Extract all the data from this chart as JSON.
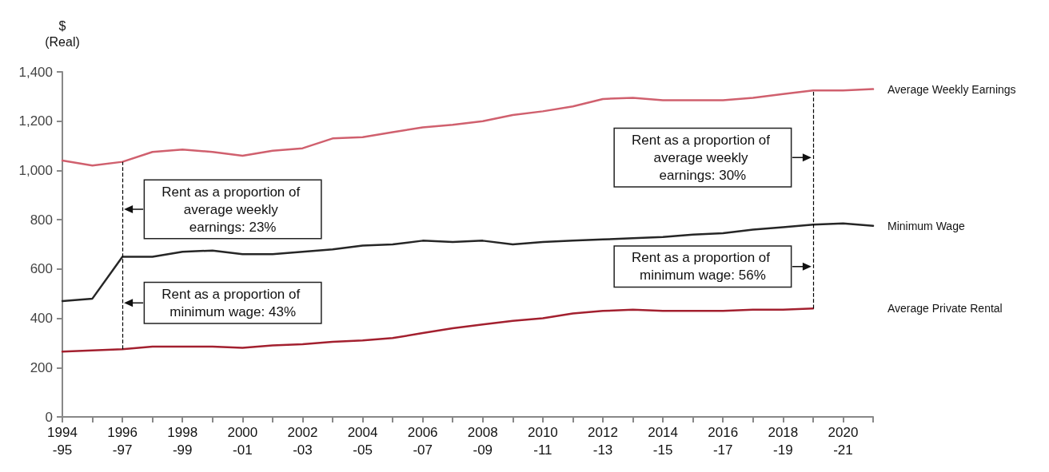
{
  "chart_data": {
    "type": "line",
    "ylabel": "$\n(Real)",
    "categories": [
      "1994-95",
      null,
      "1996-97",
      null,
      "1998-99",
      null,
      "2000-01",
      null,
      "2002-03",
      null,
      "2004-05",
      null,
      "2006-07",
      null,
      "2008-09",
      null,
      "2010-11",
      null,
      "2012-13",
      null,
      "2014-15",
      null,
      "2016-17",
      null,
      "2018-19",
      null,
      "2020-21",
      null
    ],
    "series": [
      {
        "name": "Average Weekly Earnings",
        "color": "#d0606e",
        "values": [
          1040,
          1020,
          1035,
          1075,
          1085,
          1075,
          1060,
          1080,
          1090,
          1130,
          1135,
          1155,
          1175,
          1185,
          1200,
          1225,
          1240,
          1260,
          1290,
          1295,
          1285,
          1285,
          1285,
          1295,
          1310,
          1325,
          1325,
          1330
        ]
      },
      {
        "name": "Minimum Wage",
        "color": "#262626",
        "values": [
          470,
          480,
          650,
          650,
          670,
          675,
          660,
          660,
          670,
          680,
          695,
          700,
          715,
          710,
          715,
          700,
          710,
          715,
          720,
          725,
          730,
          740,
          745,
          760,
          770,
          780,
          785,
          775
        ]
      },
      {
        "name": "Average Private Rental",
        "color": "#a3202f",
        "values": [
          265,
          270,
          275,
          285,
          285,
          285,
          280,
          290,
          295,
          305,
          310,
          320,
          340,
          360,
          375,
          390,
          400,
          420,
          430,
          435,
          430,
          430,
          430,
          435,
          435,
          440,
          null,
          null
        ]
      }
    ],
    "ylim": [
      0,
      1400
    ],
    "yticks": [
      0,
      200,
      400,
      600,
      800,
      {
        "value": 1000,
        "label": "1,000"
      },
      {
        "value": 1200,
        "label": "1,200"
      },
      {
        "value": 1400,
        "label": "1,400"
      }
    ],
    "grid": false,
    "legend": false,
    "marker": "none",
    "line_style": "solid",
    "ref_lines": [
      {
        "axis": "x",
        "value": "1996-97",
        "color": "#000000",
        "line_style": "dashed"
      },
      {
        "axis": "x",
        "value": "2019-20",
        "color": "#000000",
        "line_style": "dashed"
      }
    ],
    "annotations": [
      "Rent as a proportion of average weekly earnings: 23%",
      "Rent as a proportion of minimum wage: 43%",
      "Rent as a proportion of average weekly earnings: 30%",
      "Rent as a proportion of minimum wage: 56%"
    ]
  }
}
